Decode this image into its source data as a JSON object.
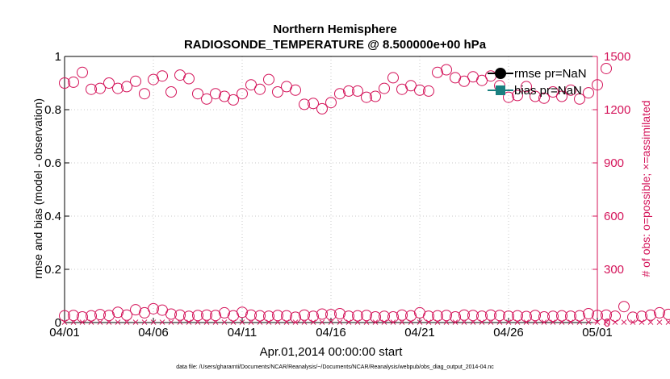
{
  "chart_data": {
    "type": "scatter",
    "title": "Northern Hemisphere",
    "subtitle": "RADIOSONDE_TEMPERATURE @ 8.500000e+00 hPa",
    "xlabel": "Apr.01,2014 00:00:00 start",
    "ylabel_left": "rmse and bias (model - observation)",
    "ylabel_right": "# of obs: o=possible; ×=assimilated",
    "footnote": "data file: /Users/gharamti/Documents/NCAR/Reanalysis/~/Documents/NCAR/Reanalysis/webpub/obs_diag_output_2014-04.nc",
    "x_ticks": [
      "04/01",
      "04/06",
      "04/11",
      "04/16",
      "04/21",
      "04/26",
      "05/01"
    ],
    "x_range_days": [
      0,
      30
    ],
    "y_left_ticks": [
      "0",
      "0.2",
      "0.4",
      "0.6",
      "0.8",
      "1"
    ],
    "ylim_left": [
      0,
      1
    ],
    "y_right_ticks": [
      "0",
      "300",
      "600",
      "900",
      "1200",
      "1500"
    ],
    "ylim_right": [
      0,
      1500
    ],
    "grid": true,
    "legend_position": "top-right",
    "series": [
      {
        "name": "rmse pr=NaN",
        "color": "#000000",
        "marker": "filled-circle",
        "values": []
      },
      {
        "name": "bias pr=NaN",
        "color": "#1a8080",
        "marker": "filled-square",
        "values": []
      },
      {
        "marker": "open-circle",
        "color": "#d4145a",
        "axis": "right",
        "x_step_days": 0.5,
        "values": [
          1350,
          1355,
          1410,
          1315,
          1320,
          1350,
          1320,
          1330,
          1360,
          1290,
          1370,
          1390,
          1300,
          1395,
          1375,
          1290,
          1260,
          1290,
          1275,
          1255,
          1290,
          1340,
          1315,
          1370,
          1300,
          1330,
          1310,
          1230,
          1235,
          1205,
          1240,
          1290,
          1305,
          1305,
          1270,
          1275,
          1320,
          1380,
          1315,
          1335,
          1310,
          1305,
          1410,
          1425,
          1380,
          1360,
          1385,
          1365,
          1390,
          1335,
          1270,
          1280,
          1330,
          1275,
          1265,
          1300,
          1275,
          1310,
          1260,
          1295,
          1340,
          1432
        ]
      },
      {
        "marker": "open-circle",
        "color": "#d4145a",
        "axis": "right",
        "x_step_days": 0.5,
        "values": [
          38,
          40,
          32,
          38,
          45,
          40,
          58,
          42,
          72,
          55,
          78,
          70,
          48,
          42,
          35,
          40,
          42,
          40,
          55,
          38,
          58,
          42,
          38,
          36,
          40,
          38,
          30,
          42,
          35,
          48,
          45,
          50,
          36,
          38,
          40,
          32,
          35,
          32,
          42,
          38,
          55,
          36,
          38,
          40,
          32,
          42,
          40,
          36,
          42,
          40,
          36,
          38,
          34,
          40,
          32,
          35,
          38,
          36,
          38,
          50,
          40,
          42,
          36,
          90,
          30,
          35,
          42,
          55,
          46,
          44,
          38,
          38
        ]
      },
      {
        "marker": "cross",
        "color": "#d4145a",
        "axis": "right",
        "x_step_days": 0.5,
        "values": [
          2,
          2,
          2,
          2,
          2,
          2,
          2,
          2,
          2,
          2,
          2,
          2,
          2,
          2,
          2,
          2,
          2,
          2,
          2,
          2,
          2,
          2,
          2,
          2,
          2,
          2,
          2,
          2,
          2,
          2,
          2,
          2,
          2,
          2,
          2,
          2,
          2,
          2,
          2,
          2,
          2,
          2,
          2,
          2,
          2,
          2,
          2,
          2,
          2,
          2,
          2,
          2,
          2,
          2,
          2,
          2,
          2,
          2,
          2,
          2,
          2,
          2,
          2,
          2,
          2,
          2,
          2,
          2,
          2,
          2,
          2,
          2
        ]
      }
    ]
  }
}
